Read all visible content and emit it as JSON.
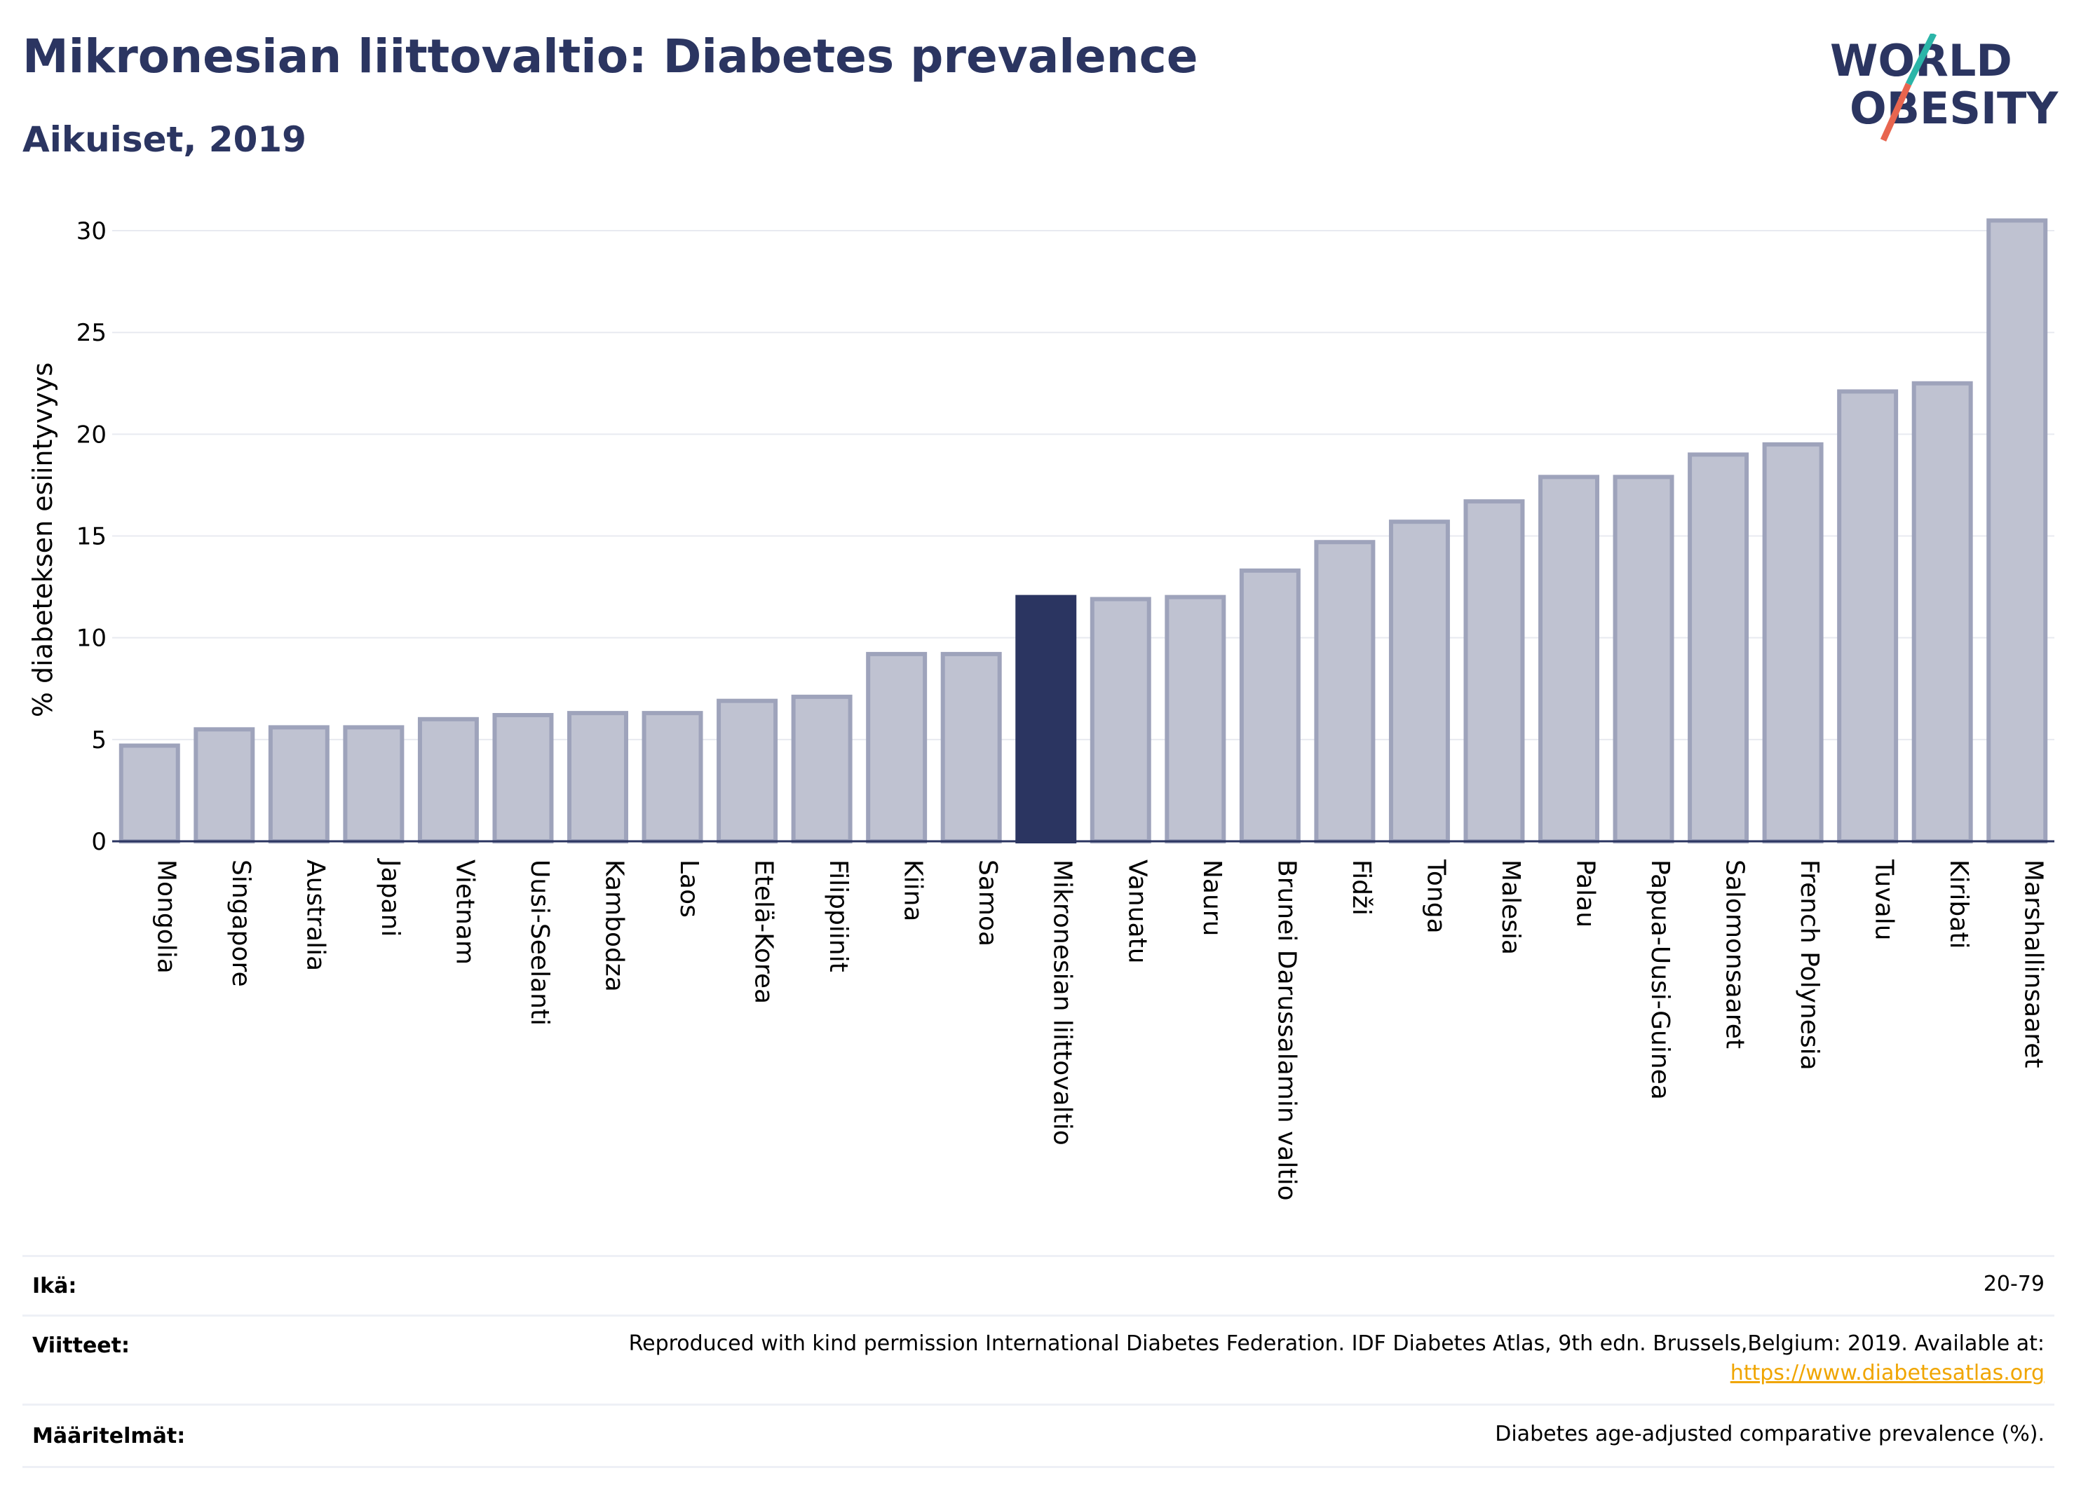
{
  "header": {
    "title": "Mikronesian liittovaltio: Diabetes prevalence",
    "subtitle": "Aikuiset, 2019",
    "logo_line1": "WORLD",
    "logo_line2": "OBESITY"
  },
  "colors": {
    "title": "#2b3561",
    "bar": "#bfc2d1",
    "bar_border": "#9ea3bb",
    "highlight": "#2b3561",
    "grid": "#e8eaf0",
    "link": "#f0a500",
    "logo_teal": "#2bb5a8",
    "logo_red": "#e8654f"
  },
  "chart_data": {
    "type": "bar",
    "ylabel": "% diabeteksen esiintyvyys",
    "xlabel": "",
    "ylim": [
      0,
      31
    ],
    "yticks": [
      0,
      5,
      10,
      15,
      20,
      25,
      30
    ],
    "grid": true,
    "highlight": "Mikronesian liittovaltio",
    "categories": [
      "Mongolia",
      "Singapore",
      "Australia",
      "Japani",
      "Vietnam",
      "Uusi-Seelanti",
      "Kambodza",
      "Laos",
      "Etelä-Korea",
      "Filippiinit",
      "Kiina",
      "Samoa",
      "Mikronesian liittovaltio",
      "Vanuatu",
      "Nauru",
      "Brunei Darussalamin valtio",
      "Fidži",
      "Tonga",
      "Malesia",
      "Palau",
      "Papua-Uusi-Guinea",
      "Salomonsaaret",
      "French Polynesia",
      "Tuvalu",
      "Kiribati",
      "Marshallinsaaret"
    ],
    "values": [
      4.7,
      5.5,
      5.6,
      5.6,
      6.0,
      6.2,
      6.3,
      6.3,
      6.9,
      7.1,
      9.2,
      9.2,
      12.0,
      11.9,
      12.0,
      13.3,
      14.7,
      15.7,
      16.7,
      17.9,
      17.9,
      19.0,
      19.5,
      22.1,
      22.5,
      30.5
    ]
  },
  "info": {
    "rows": [
      {
        "key": "Ikä:",
        "value": "20-79"
      },
      {
        "key": "Viitteet:",
        "value": "Reproduced with kind permission International Diabetes Federation. IDF Diabetes Atlas, 9th edn. Brussels,Belgium: 2019. Available at:",
        "link": "https://www.diabetesatlas.org"
      },
      {
        "key": "Määritelmät:",
        "value": "Diabetes age-adjusted comparative prevalence (%)."
      }
    ]
  }
}
